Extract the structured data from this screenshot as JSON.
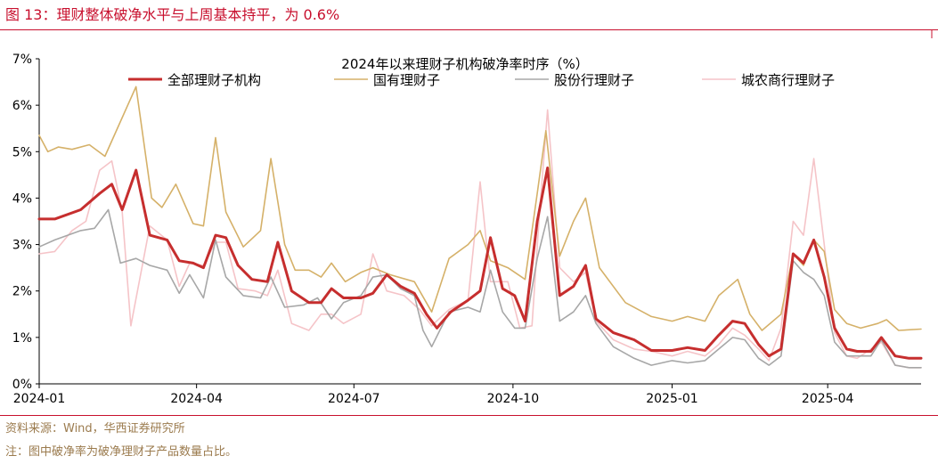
{
  "figure": {
    "title": "图 13：理财整体破净水平与上周基本持平，为 0.6%",
    "source": "资料来源：Wind，华西证券研究所",
    "note": "注：图中破净率为破净理财子产品数量占比。"
  },
  "colors": {
    "brand_red": "#c8102e",
    "footer_brown": "#9b7b4e"
  },
  "chart_data": {
    "type": "line",
    "title": "2024年以来理财子机构破净率时序（%）",
    "ylim": [
      0,
      7
    ],
    "yticks": [
      "0%",
      "1%",
      "2%",
      "3%",
      "4%",
      "5%",
      "6%",
      "7%"
    ],
    "xlim": [
      "2024-01-01",
      "2025-05-25"
    ],
    "xticks": [
      "2024-01",
      "2024-04",
      "2024-07",
      "2024-10",
      "2025-01",
      "2025-04"
    ],
    "grid": false,
    "legend": "top",
    "series": [
      {
        "name": "全部理财子机构",
        "color": "#c62e2e",
        "width": 3,
        "points": [
          [
            "2024-01-01",
            3.55
          ],
          [
            "2024-01-10",
            3.55
          ],
          [
            "2024-01-25",
            3.75
          ],
          [
            "2024-02-05",
            4.1
          ],
          [
            "2024-02-12",
            4.3
          ],
          [
            "2024-02-18",
            3.75
          ],
          [
            "2024-02-26",
            4.6
          ],
          [
            "2024-03-05",
            3.2
          ],
          [
            "2024-03-15",
            3.1
          ],
          [
            "2024-03-22",
            2.65
          ],
          [
            "2024-03-30",
            2.6
          ],
          [
            "2024-04-05",
            2.5
          ],
          [
            "2024-04-12",
            3.2
          ],
          [
            "2024-04-18",
            3.15
          ],
          [
            "2024-04-25",
            2.55
          ],
          [
            "2024-05-03",
            2.25
          ],
          [
            "2024-05-12",
            2.2
          ],
          [
            "2024-05-18",
            3.05
          ],
          [
            "2024-05-26",
            2.0
          ],
          [
            "2024-06-05",
            1.75
          ],
          [
            "2024-06-12",
            1.75
          ],
          [
            "2024-06-18",
            2.05
          ],
          [
            "2024-06-25",
            1.85
          ],
          [
            "2024-07-05",
            1.85
          ],
          [
            "2024-07-12",
            1.95
          ],
          [
            "2024-07-20",
            2.35
          ],
          [
            "2024-07-28",
            2.1
          ],
          [
            "2024-08-05",
            1.95
          ],
          [
            "2024-08-12",
            1.5
          ],
          [
            "2024-08-18",
            1.2
          ],
          [
            "2024-08-26",
            1.55
          ],
          [
            "2024-09-05",
            1.8
          ],
          [
            "2024-09-12",
            2.0
          ],
          [
            "2024-09-18",
            3.15
          ],
          [
            "2024-09-25",
            2.05
          ],
          [
            "2024-10-02",
            1.9
          ],
          [
            "2024-10-08",
            1.35
          ],
          [
            "2024-10-15",
            3.5
          ],
          [
            "2024-10-21",
            4.65
          ],
          [
            "2024-10-28",
            1.9
          ],
          [
            "2024-11-05",
            2.1
          ],
          [
            "2024-11-12",
            2.55
          ],
          [
            "2024-11-18",
            1.4
          ],
          [
            "2024-11-28",
            1.1
          ],
          [
            "2024-12-10",
            0.95
          ],
          [
            "2024-12-20",
            0.72
          ],
          [
            "2025-01-01",
            0.72
          ],
          [
            "2025-01-10",
            0.78
          ],
          [
            "2025-01-20",
            0.72
          ],
          [
            "2025-01-28",
            1.05
          ],
          [
            "2025-02-05",
            1.35
          ],
          [
            "2025-02-12",
            1.3
          ],
          [
            "2025-02-20",
            0.85
          ],
          [
            "2025-02-26",
            0.6
          ],
          [
            "2025-03-05",
            0.75
          ],
          [
            "2025-03-12",
            2.8
          ],
          [
            "2025-03-18",
            2.6
          ],
          [
            "2025-03-24",
            3.1
          ],
          [
            "2025-03-30",
            2.3
          ],
          [
            "2025-04-05",
            1.2
          ],
          [
            "2025-04-12",
            0.75
          ],
          [
            "2025-04-18",
            0.7
          ],
          [
            "2025-04-26",
            0.7
          ],
          [
            "2025-05-02",
            1.0
          ],
          [
            "2025-05-10",
            0.6
          ],
          [
            "2025-05-18",
            0.55
          ],
          [
            "2025-05-25",
            0.55
          ]
        ]
      },
      {
        "name": "国有理财子",
        "color": "#d5b169",
        "width": 1.6,
        "points": [
          [
            "2024-01-01",
            5.35
          ],
          [
            "2024-01-06",
            5.0
          ],
          [
            "2024-01-12",
            5.1
          ],
          [
            "2024-01-20",
            5.05
          ],
          [
            "2024-01-30",
            5.15
          ],
          [
            "2024-02-08",
            4.9
          ],
          [
            "2024-02-26",
            6.4
          ],
          [
            "2024-03-06",
            4.0
          ],
          [
            "2024-03-12",
            3.8
          ],
          [
            "2024-03-20",
            4.3
          ],
          [
            "2024-03-30",
            3.45
          ],
          [
            "2024-04-05",
            3.4
          ],
          [
            "2024-04-12",
            5.3
          ],
          [
            "2024-04-18",
            3.7
          ],
          [
            "2024-04-28",
            2.95
          ],
          [
            "2024-05-08",
            3.3
          ],
          [
            "2024-05-14",
            4.85
          ],
          [
            "2024-05-22",
            3.0
          ],
          [
            "2024-05-28",
            2.45
          ],
          [
            "2024-06-05",
            2.45
          ],
          [
            "2024-06-12",
            2.3
          ],
          [
            "2024-06-18",
            2.6
          ],
          [
            "2024-06-26",
            2.2
          ],
          [
            "2024-07-05",
            2.4
          ],
          [
            "2024-07-12",
            2.5
          ],
          [
            "2024-07-22",
            2.35
          ],
          [
            "2024-08-05",
            2.2
          ],
          [
            "2024-08-15",
            1.55
          ],
          [
            "2024-08-25",
            2.7
          ],
          [
            "2024-09-05",
            3.0
          ],
          [
            "2024-09-12",
            3.3
          ],
          [
            "2024-09-18",
            2.65
          ],
          [
            "2024-09-28",
            2.5
          ],
          [
            "2024-10-08",
            2.25
          ],
          [
            "2024-10-15",
            4.1
          ],
          [
            "2024-10-20",
            5.45
          ],
          [
            "2024-10-28",
            2.75
          ],
          [
            "2024-11-05",
            3.5
          ],
          [
            "2024-11-12",
            4.0
          ],
          [
            "2024-11-20",
            2.5
          ],
          [
            "2024-12-05",
            1.75
          ],
          [
            "2024-12-20",
            1.45
          ],
          [
            "2025-01-01",
            1.35
          ],
          [
            "2025-01-10",
            1.45
          ],
          [
            "2025-01-20",
            1.35
          ],
          [
            "2025-01-28",
            1.9
          ],
          [
            "2025-02-08",
            2.25
          ],
          [
            "2025-02-15",
            1.5
          ],
          [
            "2025-02-22",
            1.15
          ],
          [
            "2025-03-05",
            1.5
          ],
          [
            "2025-03-12",
            2.8
          ],
          [
            "2025-03-18",
            2.55
          ],
          [
            "2025-03-24",
            3.1
          ],
          [
            "2025-03-30",
            2.85
          ],
          [
            "2025-04-05",
            1.6
          ],
          [
            "2025-04-12",
            1.3
          ],
          [
            "2025-04-20",
            1.2
          ],
          [
            "2025-04-30",
            1.3
          ],
          [
            "2025-05-05",
            1.38
          ],
          [
            "2025-05-12",
            1.15
          ],
          [
            "2025-05-25",
            1.18
          ]
        ]
      },
      {
        "name": "股份行理财子",
        "color": "#a7a7a7",
        "width": 1.6,
        "points": [
          [
            "2024-01-01",
            2.95
          ],
          [
            "2024-01-10",
            3.1
          ],
          [
            "2024-01-25",
            3.3
          ],
          [
            "2024-02-02",
            3.35
          ],
          [
            "2024-02-10",
            3.75
          ],
          [
            "2024-02-17",
            2.6
          ],
          [
            "2024-02-26",
            2.7
          ],
          [
            "2024-03-05",
            2.55
          ],
          [
            "2024-03-15",
            2.45
          ],
          [
            "2024-03-22",
            1.95
          ],
          [
            "2024-03-28",
            2.35
          ],
          [
            "2024-04-05",
            1.85
          ],
          [
            "2024-04-12",
            3.1
          ],
          [
            "2024-04-18",
            2.3
          ],
          [
            "2024-04-28",
            1.9
          ],
          [
            "2024-05-08",
            1.85
          ],
          [
            "2024-05-14",
            2.3
          ],
          [
            "2024-05-22",
            1.65
          ],
          [
            "2024-06-02",
            1.7
          ],
          [
            "2024-06-10",
            1.85
          ],
          [
            "2024-06-18",
            1.4
          ],
          [
            "2024-06-25",
            1.75
          ],
          [
            "2024-07-05",
            1.9
          ],
          [
            "2024-07-12",
            2.3
          ],
          [
            "2024-07-20",
            2.35
          ],
          [
            "2024-07-28",
            2.05
          ],
          [
            "2024-08-05",
            1.9
          ],
          [
            "2024-08-10",
            1.15
          ],
          [
            "2024-08-15",
            0.8
          ],
          [
            "2024-08-25",
            1.55
          ],
          [
            "2024-09-05",
            1.65
          ],
          [
            "2024-09-12",
            1.55
          ],
          [
            "2024-09-18",
            2.45
          ],
          [
            "2024-09-25",
            1.55
          ],
          [
            "2024-10-02",
            1.2
          ],
          [
            "2024-10-08",
            1.2
          ],
          [
            "2024-10-15",
            2.7
          ],
          [
            "2024-10-21",
            3.6
          ],
          [
            "2024-10-28",
            1.35
          ],
          [
            "2024-11-05",
            1.55
          ],
          [
            "2024-11-12",
            1.9
          ],
          [
            "2024-11-18",
            1.3
          ],
          [
            "2024-11-28",
            0.8
          ],
          [
            "2024-12-10",
            0.55
          ],
          [
            "2024-12-20",
            0.4
          ],
          [
            "2025-01-01",
            0.5
          ],
          [
            "2025-01-10",
            0.45
          ],
          [
            "2025-01-20",
            0.5
          ],
          [
            "2025-01-28",
            0.75
          ],
          [
            "2025-02-05",
            1.0
          ],
          [
            "2025-02-12",
            0.95
          ],
          [
            "2025-02-20",
            0.55
          ],
          [
            "2025-02-26",
            0.4
          ],
          [
            "2025-03-05",
            0.6
          ],
          [
            "2025-03-12",
            2.65
          ],
          [
            "2025-03-18",
            2.4
          ],
          [
            "2025-03-24",
            2.25
          ],
          [
            "2025-03-30",
            1.9
          ],
          [
            "2025-04-05",
            0.9
          ],
          [
            "2025-04-12",
            0.6
          ],
          [
            "2025-04-18",
            0.6
          ],
          [
            "2025-04-26",
            0.6
          ],
          [
            "2025-05-02",
            0.95
          ],
          [
            "2025-05-10",
            0.4
          ],
          [
            "2025-05-18",
            0.35
          ],
          [
            "2025-05-25",
            0.35
          ]
        ]
      },
      {
        "name": "城农商行理财子",
        "color": "#f5c4c8",
        "width": 1.6,
        "points": [
          [
            "2024-01-01",
            2.8
          ],
          [
            "2024-01-10",
            2.85
          ],
          [
            "2024-01-20",
            3.3
          ],
          [
            "2024-01-28",
            3.5
          ],
          [
            "2024-02-05",
            4.6
          ],
          [
            "2024-02-12",
            4.8
          ],
          [
            "2024-02-18",
            3.7
          ],
          [
            "2024-02-23",
            1.25
          ],
          [
            "2024-03-05",
            3.4
          ],
          [
            "2024-03-15",
            3.1
          ],
          [
            "2024-03-22",
            2.1
          ],
          [
            "2024-03-28",
            2.6
          ],
          [
            "2024-04-05",
            2.55
          ],
          [
            "2024-04-12",
            3.05
          ],
          [
            "2024-04-18",
            3.05
          ],
          [
            "2024-04-25",
            2.05
          ],
          [
            "2024-05-05",
            2.0
          ],
          [
            "2024-05-12",
            1.9
          ],
          [
            "2024-05-18",
            2.45
          ],
          [
            "2024-05-26",
            1.3
          ],
          [
            "2024-06-05",
            1.15
          ],
          [
            "2024-06-12",
            1.5
          ],
          [
            "2024-06-18",
            1.5
          ],
          [
            "2024-06-25",
            1.3
          ],
          [
            "2024-07-05",
            1.5
          ],
          [
            "2024-07-12",
            2.8
          ],
          [
            "2024-07-20",
            2.0
          ],
          [
            "2024-07-30",
            1.9
          ],
          [
            "2024-08-08",
            1.6
          ],
          [
            "2024-08-15",
            1.25
          ],
          [
            "2024-08-25",
            1.6
          ],
          [
            "2024-09-05",
            1.8
          ],
          [
            "2024-09-12",
            4.35
          ],
          [
            "2024-09-18",
            2.2
          ],
          [
            "2024-09-28",
            2.2
          ],
          [
            "2024-10-05",
            1.2
          ],
          [
            "2024-10-12",
            1.25
          ],
          [
            "2024-10-16",
            3.5
          ],
          [
            "2024-10-21",
            5.9
          ],
          [
            "2024-10-28",
            2.5
          ],
          [
            "2024-11-05",
            2.2
          ],
          [
            "2024-11-12",
            2.4
          ],
          [
            "2024-11-18",
            1.35
          ],
          [
            "2024-11-28",
            0.95
          ],
          [
            "2024-12-10",
            0.75
          ],
          [
            "2024-12-20",
            0.7
          ],
          [
            "2025-01-01",
            0.6
          ],
          [
            "2025-01-10",
            0.7
          ],
          [
            "2025-01-20",
            0.6
          ],
          [
            "2025-01-28",
            0.85
          ],
          [
            "2025-02-05",
            1.2
          ],
          [
            "2025-02-12",
            1.05
          ],
          [
            "2025-02-20",
            0.75
          ],
          [
            "2025-02-26",
            0.5
          ],
          [
            "2025-03-05",
            1.2
          ],
          [
            "2025-03-12",
            3.5
          ],
          [
            "2025-03-18",
            3.2
          ],
          [
            "2025-03-24",
            4.85
          ],
          [
            "2025-03-30",
            3.0
          ],
          [
            "2025-04-05",
            1.1
          ],
          [
            "2025-04-12",
            0.6
          ],
          [
            "2025-04-18",
            0.55
          ],
          [
            "2025-04-26",
            0.75
          ],
          [
            "2025-05-02",
            0.9
          ],
          [
            "2025-05-10",
            0.4
          ],
          [
            "2025-05-18",
            0.35
          ],
          [
            "2025-05-25",
            0.35
          ]
        ]
      }
    ]
  }
}
